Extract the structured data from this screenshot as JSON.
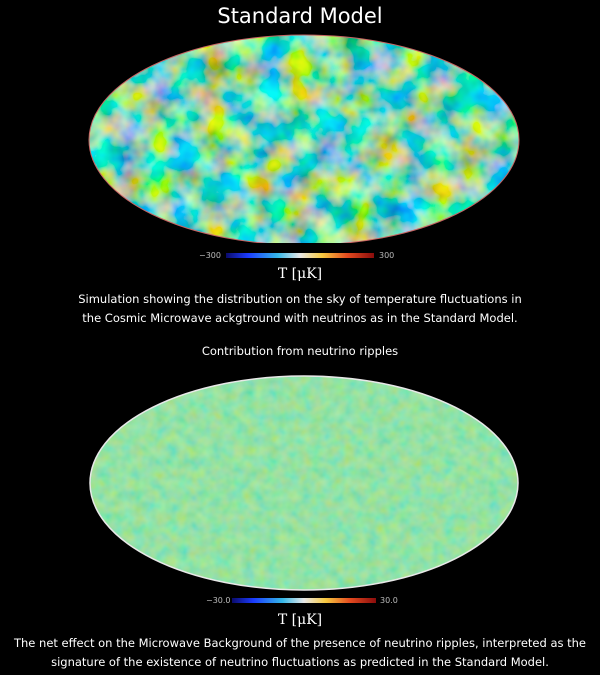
{
  "title": "Standard Model",
  "top_panel": {
    "colorbar_min": "−300",
    "colorbar_max": "300",
    "unit": "T [μK]",
    "caption_line1": "Simulation showing the distribution on the sky of temperature fluctuations in",
    "caption_line2": "the Cosmic Microwave ackgtround with neutrinos as in the Standard Model."
  },
  "bottom_panel": {
    "subtitle": "Contribution from neutrino ripples",
    "colorbar_min": "−30.0",
    "colorbar_max": "30.0",
    "unit": "T [μK]",
    "caption_line1": "The net effect on the Microwave Background of the presence of neutrino ripples, interpreted as the",
    "caption_line2": "signature of the existence of neutrino fluctuations as predicted in the Standard Model."
  },
  "colors": {
    "background": "#000000",
    "top_map_base": "#3aa6a6",
    "bottom_map_base": "#6fd38a"
  }
}
